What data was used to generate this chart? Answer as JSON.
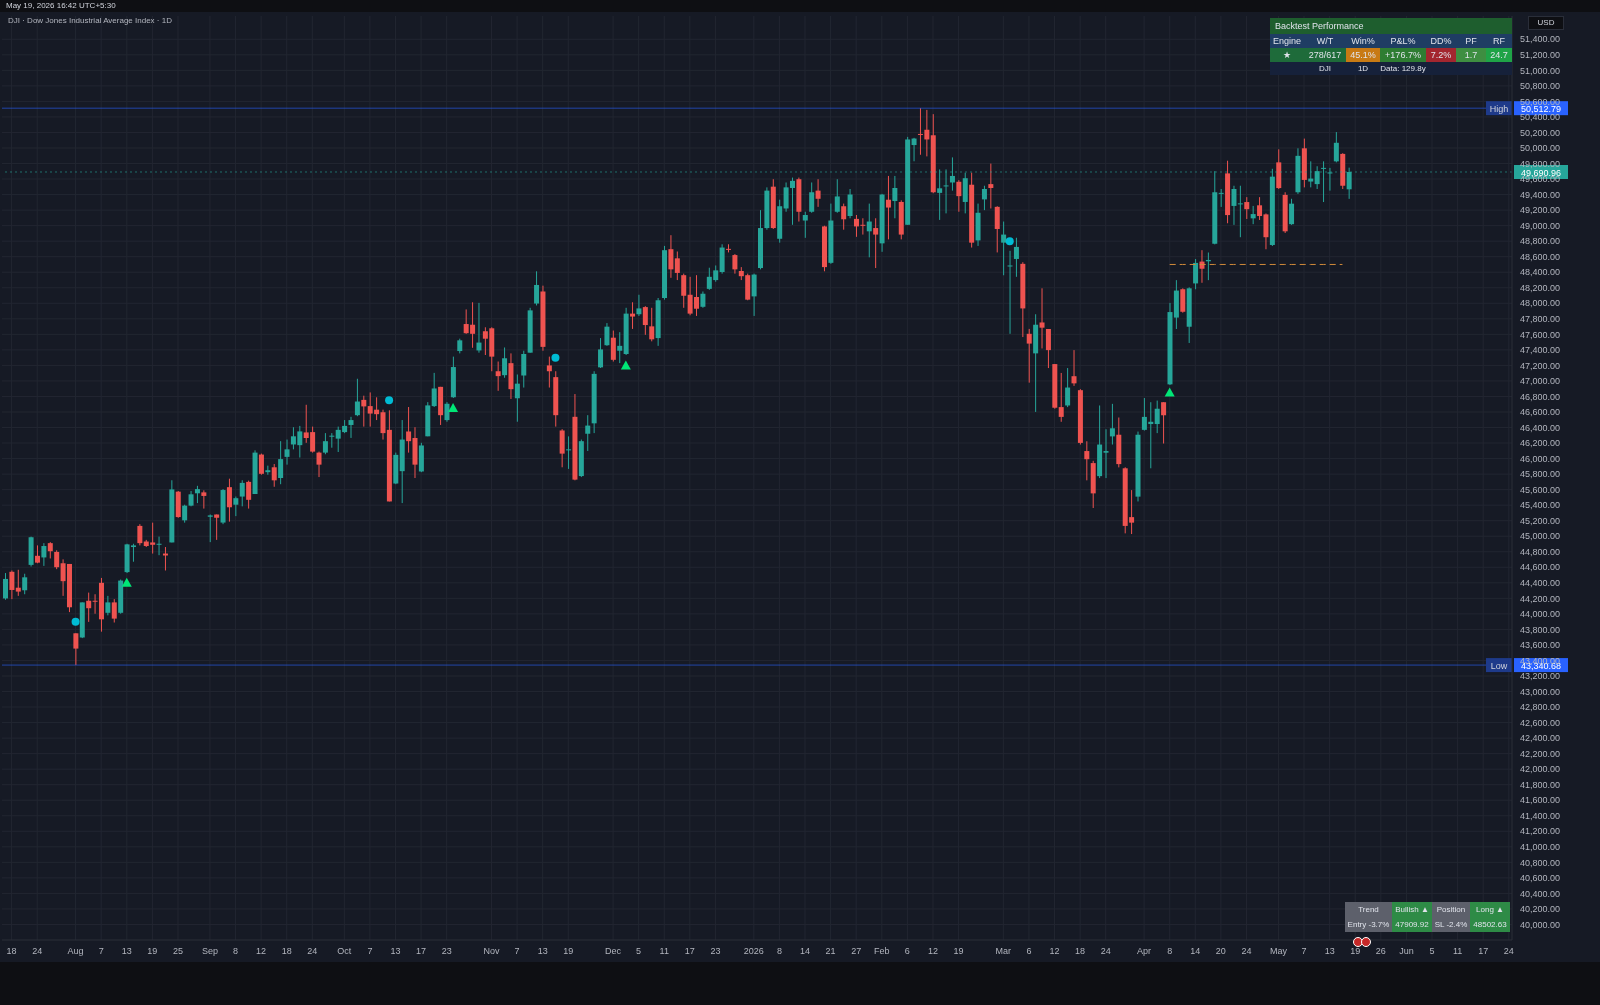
{
  "chart_data": {
    "type": "candlestick",
    "title": "DJI · Dow Jones Industrial Average Index · 1D",
    "grid": true,
    "categories": [
      null,
      "18",
      null,
      null,
      null,
      "24",
      null,
      null,
      null,
      null,
      null,
      "Aug",
      null,
      null,
      null,
      "7",
      null,
      null,
      null,
      "13",
      null,
      null,
      null,
      "19",
      null,
      null,
      null,
      "25",
      null,
      null,
      null,
      null,
      "Sep",
      null,
      null,
      null,
      "8",
      null,
      null,
      null,
      "12",
      null,
      null,
      null,
      "18",
      null,
      null,
      null,
      "24",
      null,
      null,
      null,
      null,
      "Oct",
      null,
      null,
      null,
      "7",
      null,
      null,
      null,
      "13",
      null,
      null,
      null,
      "17",
      null,
      null,
      null,
      "23",
      null,
      null,
      null,
      null,
      null,
      null,
      "Nov",
      null,
      null,
      null,
      "7",
      null,
      null,
      null,
      "13",
      null,
      null,
      null,
      "19",
      null,
      null,
      null,
      null,
      null,
      null,
      "Dec",
      null,
      null,
      null,
      "5",
      null,
      null,
      null,
      "11",
      null,
      null,
      null,
      "17",
      null,
      null,
      null,
      "23",
      null,
      null,
      null,
      null,
      null,
      "2026",
      null,
      null,
      null,
      "8",
      null,
      null,
      null,
      "14",
      null,
      null,
      null,
      "21",
      null,
      null,
      null,
      "27",
      null,
      null,
      null,
      "Feb",
      null,
      null,
      null,
      "6",
      null,
      null,
      null,
      "12",
      null,
      null,
      null,
      "19",
      null,
      null,
      null,
      null,
      null,
      null,
      "Mar",
      null,
      null,
      null,
      "6",
      null,
      null,
      null,
      "12",
      null,
      null,
      null,
      "18",
      null,
      null,
      null,
      "24",
      null,
      null,
      null,
      null,
      null,
      "Apr",
      null,
      null,
      null,
      "8",
      null,
      null,
      null,
      "14",
      null,
      null,
      null,
      "20",
      null,
      null,
      null,
      "24",
      null,
      null,
      null,
      null,
      "May",
      null,
      null,
      null,
      "7",
      null,
      null,
      null,
      "13",
      null,
      null,
      null,
      "19",
      null,
      null,
      null,
      "26",
      null,
      null,
      null,
      "Jun",
      null,
      null,
      null,
      "5",
      null,
      null,
      null,
      "11",
      null,
      null,
      null,
      "17",
      null,
      null,
      null,
      "24"
    ],
    "ohlc": [
      [
        44199,
        44526,
        44182,
        44450
      ],
      [
        44542,
        44559,
        44190,
        44308
      ],
      [
        44337,
        44568,
        44232,
        44287
      ],
      [
        44304,
        44517,
        44253,
        44471
      ],
      [
        44631,
        44995,
        44610,
        44987
      ],
      [
        44748,
        44882,
        44652,
        44660
      ],
      [
        44727,
        44911,
        44618,
        44874
      ],
      [
        44911,
        44924,
        44714,
        44807
      ],
      [
        44798,
        44819,
        44576,
        44601
      ],
      [
        44652,
        44702,
        44232,
        44421
      ],
      [
        44643,
        44643,
        44023,
        44085
      ],
      [
        43750,
        43750,
        43341,
        43553
      ],
      [
        43696,
        44148,
        43688,
        44148
      ],
      [
        44169,
        44274,
        43897,
        44073
      ],
      [
        44169,
        44253,
        44002,
        44160
      ],
      [
        44400,
        44463,
        43771,
        43930
      ],
      [
        44014,
        44232,
        43981,
        44148
      ],
      [
        44148,
        44190,
        43889,
        43939
      ],
      [
        44014,
        44442,
        44002,
        44429
      ],
      [
        44538,
        44903,
        44526,
        44895
      ],
      [
        44861,
        44903,
        44672,
        44882
      ],
      [
        45133,
        45155,
        44882,
        44911
      ],
      [
        44932,
        44953,
        44861,
        44874
      ],
      [
        44920,
        45175,
        44777,
        44890
      ],
      [
        44890,
        44995,
        44756,
        44903
      ],
      [
        44777,
        44861,
        44559,
        44752
      ],
      [
        44920,
        45721,
        44920,
        45603
      ],
      [
        45574,
        45582,
        45238,
        45247
      ],
      [
        45205,
        45406,
        45175,
        45394
      ],
      [
        45394,
        45582,
        45385,
        45540
      ],
      [
        45553,
        45649,
        45427,
        45607
      ],
      [
        45565,
        45591,
        45356,
        45519
      ],
      [
        45251,
        45280,
        44924,
        45268
      ],
      [
        45280,
        45280,
        44953,
        45238
      ],
      [
        45176,
        45607,
        45155,
        45595
      ],
      [
        45632,
        45741,
        45188,
        45373
      ],
      [
        45406,
        45511,
        45259,
        45490
      ],
      [
        45511,
        45721,
        45385,
        45687
      ],
      [
        45700,
        45716,
        45356,
        45469
      ],
      [
        45544,
        46106,
        45544,
        46077
      ],
      [
        46052,
        46064,
        45792,
        45804
      ],
      [
        45825,
        45909,
        45792,
        45850
      ],
      [
        45888,
        45930,
        45637,
        45720
      ],
      [
        45750,
        46224,
        45670,
        45993
      ],
      [
        46022,
        46245,
        45922,
        46119
      ],
      [
        46182,
        46404,
        46119,
        46287
      ],
      [
        46173,
        46421,
        46014,
        46350
      ],
      [
        46337,
        46693,
        46203,
        46265
      ],
      [
        46341,
        46412,
        46077,
        46090
      ],
      [
        46077,
        46090,
        45762,
        45922
      ],
      [
        46077,
        46328,
        46056,
        46224
      ],
      [
        46282,
        46328,
        46140,
        46295
      ],
      [
        46257,
        46412,
        46085,
        46370
      ],
      [
        46341,
        46496,
        46328,
        46421
      ],
      [
        46433,
        46538,
        46266,
        46496
      ],
      [
        46559,
        47028,
        46546,
        46735
      ],
      [
        46756,
        46810,
        46412,
        46672
      ],
      [
        46676,
        46852,
        46412,
        46580
      ],
      [
        46630,
        46789,
        46496,
        46572
      ],
      [
        46597,
        46630,
        46245,
        46328
      ],
      [
        46370,
        46622,
        45448,
        45448
      ],
      [
        45679,
        46077,
        45670,
        46048
      ],
      [
        45838,
        46496,
        45427,
        46245
      ],
      [
        46349,
        46664,
        46077,
        46224
      ],
      [
        46265,
        46404,
        45750,
        45922
      ],
      [
        45834,
        46203,
        45825,
        46169
      ],
      [
        46287,
        46727,
        46287,
        46685
      ],
      [
        46676,
        47104,
        46664,
        46903
      ],
      [
        46924,
        46924,
        46433,
        46559
      ],
      [
        46496,
        46727,
        46475,
        46706
      ],
      [
        46790,
        47313,
        46781,
        47179
      ],
      [
        47385,
        47544,
        47355,
        47523
      ],
      [
        47733,
        47921,
        47607,
        47615
      ],
      [
        47724,
        48013,
        47427,
        47607
      ],
      [
        47393,
        48005,
        47364,
        47494
      ],
      [
        47640,
        47691,
        47334,
        47544
      ],
      [
        47678,
        47691,
        47125,
        47313
      ],
      [
        47125,
        47250,
        46873,
        47062
      ],
      [
        47074,
        47431,
        47041,
        47292
      ],
      [
        47229,
        47355,
        46768,
        46894
      ],
      [
        46777,
        47083,
        46475,
        46965
      ],
      [
        47070,
        47389,
        46915,
        47347
      ],
      [
        47364,
        47942,
        47364,
        47909
      ],
      [
        47997,
        48412,
        47972,
        48236
      ],
      [
        48152,
        48227,
        47389,
        47439
      ],
      [
        47200,
        47313,
        46915,
        47125
      ],
      [
        47049,
        47125,
        46412,
        46559
      ],
      [
        46362,
        46379,
        45888,
        46064
      ],
      [
        46110,
        46286,
        45867,
        46119
      ],
      [
        46538,
        46831,
        45720,
        45729
      ],
      [
        45775,
        46245,
        45762,
        46224
      ],
      [
        46320,
        46559,
        46098,
        46425
      ],
      [
        46454,
        47125,
        46328,
        47091
      ],
      [
        47175,
        47552,
        47167,
        47406
      ],
      [
        47460,
        47745,
        47452,
        47699
      ],
      [
        47557,
        47649,
        47250,
        47272
      ],
      [
        47389,
        47628,
        47230,
        47452
      ],
      [
        47347,
        47942,
        47334,
        47867
      ],
      [
        47867,
        48013,
        47670,
        47829
      ],
      [
        47859,
        48110,
        47837,
        47934
      ],
      [
        47951,
        47963,
        47594,
        47720
      ],
      [
        47703,
        47942,
        47510,
        47536
      ],
      [
        47552,
        48068,
        47452,
        48039
      ],
      [
        48068,
        48739,
        48047,
        48684
      ],
      [
        48697,
        48877,
        48328,
        48437
      ],
      [
        48579,
        48667,
        48299,
        48391
      ],
      [
        48362,
        48382,
        47942,
        48097
      ],
      [
        48110,
        48341,
        47846,
        47867
      ],
      [
        48081,
        48362,
        47837,
        47930
      ],
      [
        47955,
        48152,
        47942,
        48123
      ],
      [
        48186,
        48458,
        48173,
        48341
      ],
      [
        48299,
        48487,
        48278,
        48424
      ],
      [
        48403,
        48760,
        48382,
        48718
      ],
      [
        48701,
        48760,
        48655,
        48693
      ],
      [
        48621,
        48634,
        48382,
        48437
      ],
      [
        48416,
        48466,
        48299,
        48349
      ],
      [
        48362,
        48382,
        48039,
        48047
      ],
      [
        48089,
        48382,
        47837,
        48370
      ],
      [
        48454,
        49200,
        48437,
        48969
      ],
      [
        48969,
        49493,
        48948,
        49451
      ],
      [
        49502,
        49598,
        48957,
        48969
      ],
      [
        48831,
        49334,
        48781,
        49250
      ],
      [
        49221,
        49556,
        49179,
        49493
      ],
      [
        49485,
        49619,
        49011,
        49577
      ],
      [
        49598,
        49619,
        49053,
        49179
      ],
      [
        49066,
        49179,
        48843,
        49137
      ],
      [
        49179,
        49556,
        49166,
        49430
      ],
      [
        49451,
        49598,
        49242,
        49346
      ],
      [
        48990,
        48999,
        48412,
        48466
      ],
      [
        48521,
        49284,
        48508,
        49066
      ],
      [
        49179,
        49598,
        49166,
        49376
      ],
      [
        49250,
        49284,
        48948,
        49082
      ],
      [
        49124,
        49472,
        49095,
        49401
      ],
      [
        49087,
        49137,
        48856,
        48990
      ],
      [
        49011,
        49095,
        48885,
        49007
      ],
      [
        48927,
        49284,
        48592,
        49053
      ],
      [
        48969,
        49095,
        48454,
        48885
      ],
      [
        48772,
        49409,
        48663,
        49401
      ],
      [
        49334,
        49640,
        48823,
        49233
      ],
      [
        49317,
        49640,
        49095,
        49485
      ],
      [
        49305,
        49326,
        48823,
        48885
      ],
      [
        49011,
        50143,
        49011,
        50110
      ],
      [
        50038,
        50131,
        49829,
        50122
      ],
      [
        50181,
        50513,
        49913,
        50177
      ],
      [
        50235,
        50491,
        49892,
        50110
      ],
      [
        50164,
        50436,
        49418,
        49430
      ],
      [
        49422,
        49724,
        49074,
        49481
      ],
      [
        49514,
        49724,
        49158,
        49518
      ],
      [
        49556,
        49879,
        49451,
        49640
      ],
      [
        49565,
        49586,
        49179,
        49380
      ],
      [
        49305,
        49682,
        49158,
        49611
      ],
      [
        49527,
        49682,
        48718,
        48781
      ],
      [
        48810,
        49284,
        48739,
        49166
      ],
      [
        49338,
        49514,
        49200,
        49472
      ],
      [
        49535,
        49799,
        49221,
        49485
      ],
      [
        49242,
        49250,
        48655,
        48957
      ],
      [
        48781,
        49053,
        48361,
        48885
      ],
      [
        48483,
        48676,
        47607,
        48487
      ],
      [
        48571,
        48844,
        48341,
        48726
      ],
      [
        48508,
        48529,
        47565,
        47934
      ],
      [
        47607,
        47670,
        46978,
        47481
      ],
      [
        47355,
        47859,
        46601,
        47724
      ],
      [
        47753,
        48193,
        47418,
        47686
      ],
      [
        47669,
        47669,
        47166,
        47397
      ],
      [
        47217,
        47217,
        46642,
        46655
      ],
      [
        46663,
        47103,
        46474,
        46537
      ],
      [
        46684,
        47166,
        46663,
        46915
      ],
      [
        47061,
        47397,
        46936,
        46969
      ],
      [
        46881,
        46894,
        46181,
        46202
      ],
      [
        46097,
        46223,
        45720,
        45992
      ],
      [
        45942,
        45971,
        45364,
        45552
      ],
      [
        45774,
        46684,
        45749,
        46181
      ],
      [
        46076,
        46378,
        45749,
        46097
      ],
      [
        46286,
        46705,
        46181,
        46390
      ],
      [
        46307,
        46529,
        45887,
        45929
      ],
      [
        45875,
        45888,
        45037,
        45133
      ],
      [
        45246,
        45594,
        45028,
        45175
      ],
      [
        45510,
        46348,
        45448,
        46307
      ],
      [
        46370,
        46780,
        46361,
        46537
      ],
      [
        46445,
        46726,
        45875,
        46474
      ],
      [
        46445,
        46747,
        46328,
        46642
      ],
      [
        46726,
        46726,
        46194,
        46558
      ],
      [
        46956,
        48005,
        46948,
        47887
      ],
      [
        47816,
        48298,
        47669,
        48164
      ],
      [
        48181,
        48193,
        47879,
        47891
      ],
      [
        47698,
        48206,
        47489,
        48193
      ],
      [
        48256,
        48570,
        48181,
        48520
      ],
      [
        48537,
        48684,
        48264,
        48445
      ],
      [
        48541,
        48654,
        48298,
        48558
      ],
      [
        48767,
        49702,
        48759,
        49430
      ],
      [
        49417,
        49472,
        49241,
        49422
      ],
      [
        49673,
        49836,
        49031,
        49136
      ],
      [
        49254,
        49514,
        49010,
        49472
      ],
      [
        49283,
        49514,
        48851,
        49287
      ],
      [
        49304,
        49367,
        49086,
        49212
      ],
      [
        49094,
        49254,
        49019,
        49149
      ],
      [
        49262,
        49367,
        49073,
        49124
      ],
      [
        49145,
        49157,
        48696,
        48851
      ],
      [
        48751,
        49732,
        48738,
        49631
      ],
      [
        49815,
        49983,
        49472,
        49484
      ],
      [
        49396,
        49430,
        48906,
        48927
      ],
      [
        49019,
        49346,
        49010,
        49283
      ],
      [
        49430,
        49996,
        49409,
        49899
      ],
      [
        49996,
        50121,
        49493,
        49589
      ],
      [
        49568,
        49828,
        49493,
        49606
      ],
      [
        49535,
        49765,
        49472,
        49702
      ],
      [
        49732,
        49828,
        49304,
        49744
      ],
      [
        49681,
        49744,
        49451,
        49685
      ],
      [
        49828,
        50205,
        49815,
        50067
      ],
      [
        49924,
        49933,
        49472,
        49514
      ],
      [
        49468,
        49747,
        49345,
        49690.96
      ],
      null,
      null,
      null,
      null,
      null,
      null,
      null,
      null,
      null,
      null,
      null,
      null,
      null,
      null,
      null,
      null,
      null,
      null,
      null,
      null,
      null,
      null,
      null,
      null,
      null
    ],
    "series": [
      {
        "type": "scatter",
        "marker": "circle",
        "color": "#00bcd4",
        "values": [
          null,
          null,
          null,
          null,
          null,
          null,
          null,
          null,
          null,
          null,
          null,
          43900,
          null,
          null,
          null,
          null,
          null,
          null,
          null,
          null,
          null,
          null,
          null,
          null,
          null,
          null,
          null,
          null,
          null,
          null,
          null,
          null,
          null,
          null,
          null,
          null,
          null,
          null,
          null,
          null,
          null,
          null,
          null,
          null,
          null,
          null,
          null,
          null,
          null,
          null,
          null,
          null,
          null,
          null,
          null,
          null,
          null,
          null,
          null,
          null,
          46750,
          null,
          null,
          null,
          null,
          null,
          null,
          null,
          null,
          null,
          null,
          null,
          null,
          null,
          null,
          null,
          null,
          null,
          null,
          null,
          null,
          null,
          null,
          null,
          null,
          null,
          47300,
          null,
          null,
          null,
          null,
          null,
          null,
          null,
          null,
          null,
          null,
          null,
          null,
          null,
          null,
          null,
          null,
          null,
          null,
          null,
          null,
          null,
          null,
          null,
          null,
          null,
          null,
          null,
          null,
          null,
          null,
          null,
          null,
          null,
          null,
          null,
          null,
          null,
          null,
          null,
          null,
          null,
          null,
          null,
          null,
          null,
          null,
          null,
          null,
          null,
          null,
          null,
          null,
          null,
          null,
          null,
          null,
          null,
          null,
          null,
          null,
          null,
          null,
          null,
          null,
          null,
          null,
          null,
          null,
          null,
          null,
          48800,
          null,
          null,
          null,
          null,
          null,
          null,
          null,
          null,
          null,
          null,
          null,
          null,
          null,
          null,
          null,
          null,
          null,
          null,
          null,
          null,
          null,
          null,
          null,
          null,
          null,
          null,
          null,
          null,
          null,
          null,
          null,
          null,
          null,
          null,
          null,
          null,
          null,
          null,
          null,
          null,
          null,
          null,
          null,
          null,
          null,
          null,
          null,
          null,
          null,
          null,
          null,
          null,
          null,
          null,
          null,
          null,
          null,
          null,
          null,
          null,
          null,
          null,
          null,
          null,
          null,
          null,
          null,
          null,
          null,
          null,
          null,
          null,
          null,
          null,
          null,
          null,
          null,
          null
        ]
      },
      {
        "type": "scatter",
        "marker": "triangle",
        "color": "#00e676",
        "values": [
          null,
          null,
          null,
          null,
          null,
          null,
          null,
          null,
          null,
          null,
          null,
          null,
          null,
          null,
          null,
          null,
          null,
          null,
          null,
          44400,
          null,
          null,
          null,
          null,
          null,
          null,
          null,
          null,
          null,
          null,
          null,
          null,
          null,
          null,
          null,
          null,
          null,
          null,
          null,
          null,
          null,
          null,
          null,
          null,
          null,
          null,
          null,
          null,
          null,
          null,
          null,
          null,
          null,
          null,
          null,
          null,
          null,
          null,
          null,
          null,
          null,
          null,
          null,
          null,
          null,
          null,
          null,
          null,
          null,
          null,
          46650,
          null,
          null,
          null,
          null,
          null,
          null,
          null,
          null,
          null,
          null,
          null,
          null,
          null,
          null,
          null,
          null,
          null,
          null,
          null,
          null,
          null,
          null,
          null,
          null,
          null,
          null,
          47200,
          null,
          null,
          null,
          null,
          null,
          null,
          null,
          null,
          null,
          null,
          null,
          null,
          null,
          null,
          null,
          null,
          null,
          null,
          null,
          null,
          null,
          null,
          null,
          null,
          null,
          null,
          null,
          null,
          null,
          null,
          null,
          null,
          null,
          null,
          null,
          null,
          null,
          null,
          null,
          null,
          null,
          null,
          null,
          null,
          null,
          null,
          null,
          null,
          null,
          null,
          null,
          null,
          null,
          null,
          null,
          null,
          null,
          null,
          null,
          null,
          null,
          null,
          null,
          null,
          null,
          null,
          null,
          null,
          null,
          null,
          null,
          null,
          null,
          null,
          null,
          null,
          null,
          null,
          null,
          null,
          null,
          null,
          null,
          null,
          46850,
          null,
          null,
          null,
          null,
          null,
          null,
          null,
          null,
          null,
          null,
          null,
          null,
          null,
          null,
          null,
          null,
          null,
          null,
          null,
          null,
          null,
          null,
          null,
          null,
          null,
          null,
          null,
          null,
          null,
          null,
          null,
          null,
          null,
          null,
          null,
          null,
          null,
          null,
          null,
          null,
          null,
          null,
          null,
          null,
          null,
          null,
          null,
          null,
          null,
          null,
          null,
          null,
          null
        ]
      },
      {
        "type": "line",
        "line_style": "dashed",
        "color": "#d08a3a",
        "values": [
          null,
          null,
          null,
          null,
          null,
          null,
          null,
          null,
          null,
          null,
          null,
          null,
          null,
          null,
          null,
          null,
          null,
          null,
          null,
          null,
          null,
          null,
          null,
          null,
          null,
          null,
          null,
          null,
          null,
          null,
          null,
          null,
          null,
          null,
          null,
          null,
          null,
          null,
          null,
          null,
          null,
          null,
          null,
          null,
          null,
          null,
          null,
          null,
          null,
          null,
          null,
          null,
          null,
          null,
          null,
          null,
          null,
          null,
          null,
          null,
          null,
          null,
          null,
          null,
          null,
          null,
          null,
          null,
          null,
          null,
          null,
          null,
          null,
          null,
          null,
          null,
          null,
          null,
          null,
          null,
          null,
          null,
          null,
          null,
          null,
          null,
          null,
          null,
          null,
          null,
          null,
          null,
          null,
          null,
          null,
          null,
          null,
          null,
          null,
          null,
          null,
          null,
          null,
          null,
          null,
          null,
          null,
          null,
          null,
          null,
          null,
          null,
          null,
          null,
          null,
          null,
          null,
          null,
          null,
          null,
          null,
          null,
          null,
          null,
          null,
          null,
          null,
          null,
          null,
          null,
          null,
          null,
          null,
          null,
          null,
          null,
          null,
          null,
          null,
          null,
          null,
          null,
          null,
          null,
          null,
          null,
          null,
          null,
          null,
          null,
          null,
          null,
          null,
          null,
          null,
          null,
          null,
          null,
          null,
          null,
          null,
          null,
          null,
          null,
          null,
          null,
          null,
          null,
          null,
          null,
          null,
          null,
          null,
          null,
          null,
          null,
          null,
          null,
          null,
          null,
          null,
          null,
          48500,
          48500,
          48500,
          48500,
          48500,
          48500,
          48500,
          48500,
          48500,
          48500,
          48500,
          48500,
          48500,
          48500,
          48500,
          48500,
          48500,
          48500,
          48500,
          48500,
          48500,
          48500,
          48500,
          48500,
          48500,
          48500,
          48500,
          48500,
          null,
          null,
          null,
          null,
          null,
          null,
          null,
          null,
          null,
          null,
          null,
          null,
          null,
          null,
          null,
          null,
          null,
          null,
          null,
          null,
          null,
          null,
          null,
          null,
          null,
          null
        ]
      }
    ],
    "ylim": [
      39800,
      51700
    ],
    "yticks": [
      {
        "value": 40000,
        "label": "40,000.00"
      },
      {
        "value": 40200,
        "label": "40,200.00"
      },
      {
        "value": 40400,
        "label": "40,400.00"
      },
      {
        "value": 40600,
        "label": "40,600.00"
      },
      {
        "value": 40800,
        "label": "40,800.00"
      },
      {
        "value": 41000,
        "label": "41,000.00"
      },
      {
        "value": 41200,
        "label": "41,200.00"
      },
      {
        "value": 41400,
        "label": "41,400.00"
      },
      {
        "value": 41600,
        "label": "41,600.00"
      },
      {
        "value": 41800,
        "label": "41,800.00"
      },
      {
        "value": 42000,
        "label": "42,000.00"
      },
      {
        "value": 42200,
        "label": "42,200.00"
      },
      {
        "value": 42400,
        "label": "42,400.00"
      },
      {
        "value": 42600,
        "label": "42,600.00"
      },
      {
        "value": 42800,
        "label": "42,800.00"
      },
      {
        "value": 43000,
        "label": "43,000.00"
      },
      {
        "value": 43200,
        "label": "43,200.00"
      },
      {
        "value": 43400,
        "label": "43,400.00"
      },
      {
        "value": 43600,
        "label": "43,600.00"
      },
      {
        "value": 43800,
        "label": "43,800.00"
      },
      {
        "value": 44000,
        "label": "44,000.00"
      },
      {
        "value": 44200,
        "label": "44,200.00"
      },
      {
        "value": 44400,
        "label": "44,400.00"
      },
      {
        "value": 44600,
        "label": "44,600.00"
      },
      {
        "value": 44800,
        "label": "44,800.00"
      },
      {
        "value": 45000,
        "label": "45,000.00"
      },
      {
        "value": 45200,
        "label": "45,200.00"
      },
      {
        "value": 45400,
        "label": "45,400.00"
      },
      {
        "value": 45600,
        "label": "45,600.00"
      },
      {
        "value": 45800,
        "label": "45,800.00"
      },
      {
        "value": 46000,
        "label": "46,000.00"
      },
      {
        "value": 46200,
        "label": "46,200.00"
      },
      {
        "value": 46400,
        "label": "46,400.00"
      },
      {
        "value": 46600,
        "label": "46,600.00"
      },
      {
        "value": 46800,
        "label": "46,800.00"
      },
      {
        "value": 47000,
        "label": "47,000.00"
      },
      {
        "value": 47200,
        "label": "47,200.00"
      },
      {
        "value": 47400,
        "label": "47,400.00"
      },
      {
        "value": 47600,
        "label": "47,600.00"
      },
      {
        "value": 47800,
        "label": "47,800.00"
      },
      {
        "value": 48000,
        "label": "48,000.00"
      },
      {
        "value": 48200,
        "label": "48,200.00"
      },
      {
        "value": 48400,
        "label": "48,400.00"
      },
      {
        "value": 48600,
        "label": "48,600.00"
      },
      {
        "value": 48800,
        "label": "48,800.00"
      },
      {
        "value": 49000,
        "label": "49,000.00"
      },
      {
        "value": 49200,
        "label": "49,200.00"
      },
      {
        "value": 49400,
        "label": "49,400.00"
      },
      {
        "value": 49600,
        "label": "49,600.00"
      },
      {
        "value": 49800,
        "label": "49,800.00"
      },
      {
        "value": 50000,
        "label": "50,000.00"
      },
      {
        "value": 50200,
        "label": "50,200.00"
      },
      {
        "value": 50400,
        "label": "50,400.00"
      },
      {
        "value": 50600,
        "label": "50,600.00"
      },
      {
        "value": 50800,
        "label": "50,800.00"
      },
      {
        "value": 51000,
        "label": "51,000.00"
      },
      {
        "value": 51200,
        "label": "51,200.00"
      },
      {
        "value": 51400,
        "label": "51,400.00"
      }
    ],
    "ref_lines": [
      {
        "axis": "y",
        "value": 50512.79,
        "label": "High",
        "color": "#2962ff"
      },
      {
        "axis": "y",
        "value": 49690.96,
        "color": "#26a69a",
        "line_style": "dotted"
      },
      {
        "axis": "y",
        "value": 43340.68,
        "label": "Low",
        "color": "#2962ff"
      }
    ],
    "annotations": [
      "Backtest Performance",
      "Engine",
      "W/T",
      "Win%",
      "P&L%",
      "DD%",
      "PF",
      "RF",
      "★",
      "278/617",
      "45.1%",
      "+176.7%",
      "7.2%",
      "1.7",
      "24.7",
      "DJI",
      "1D",
      "Data: 129.8y",
      "Trend",
      "Bullish ▲",
      "Position",
      "Long ▲",
      "Entry -3.7%",
      "47909.92",
      "SL -2.4%",
      "48502.63",
      "USD",
      "May 19, 2026 16:42 UTC+5:30",
      "50,512.79",
      "49,690.96",
      "43,340.68"
    ]
  }
}
